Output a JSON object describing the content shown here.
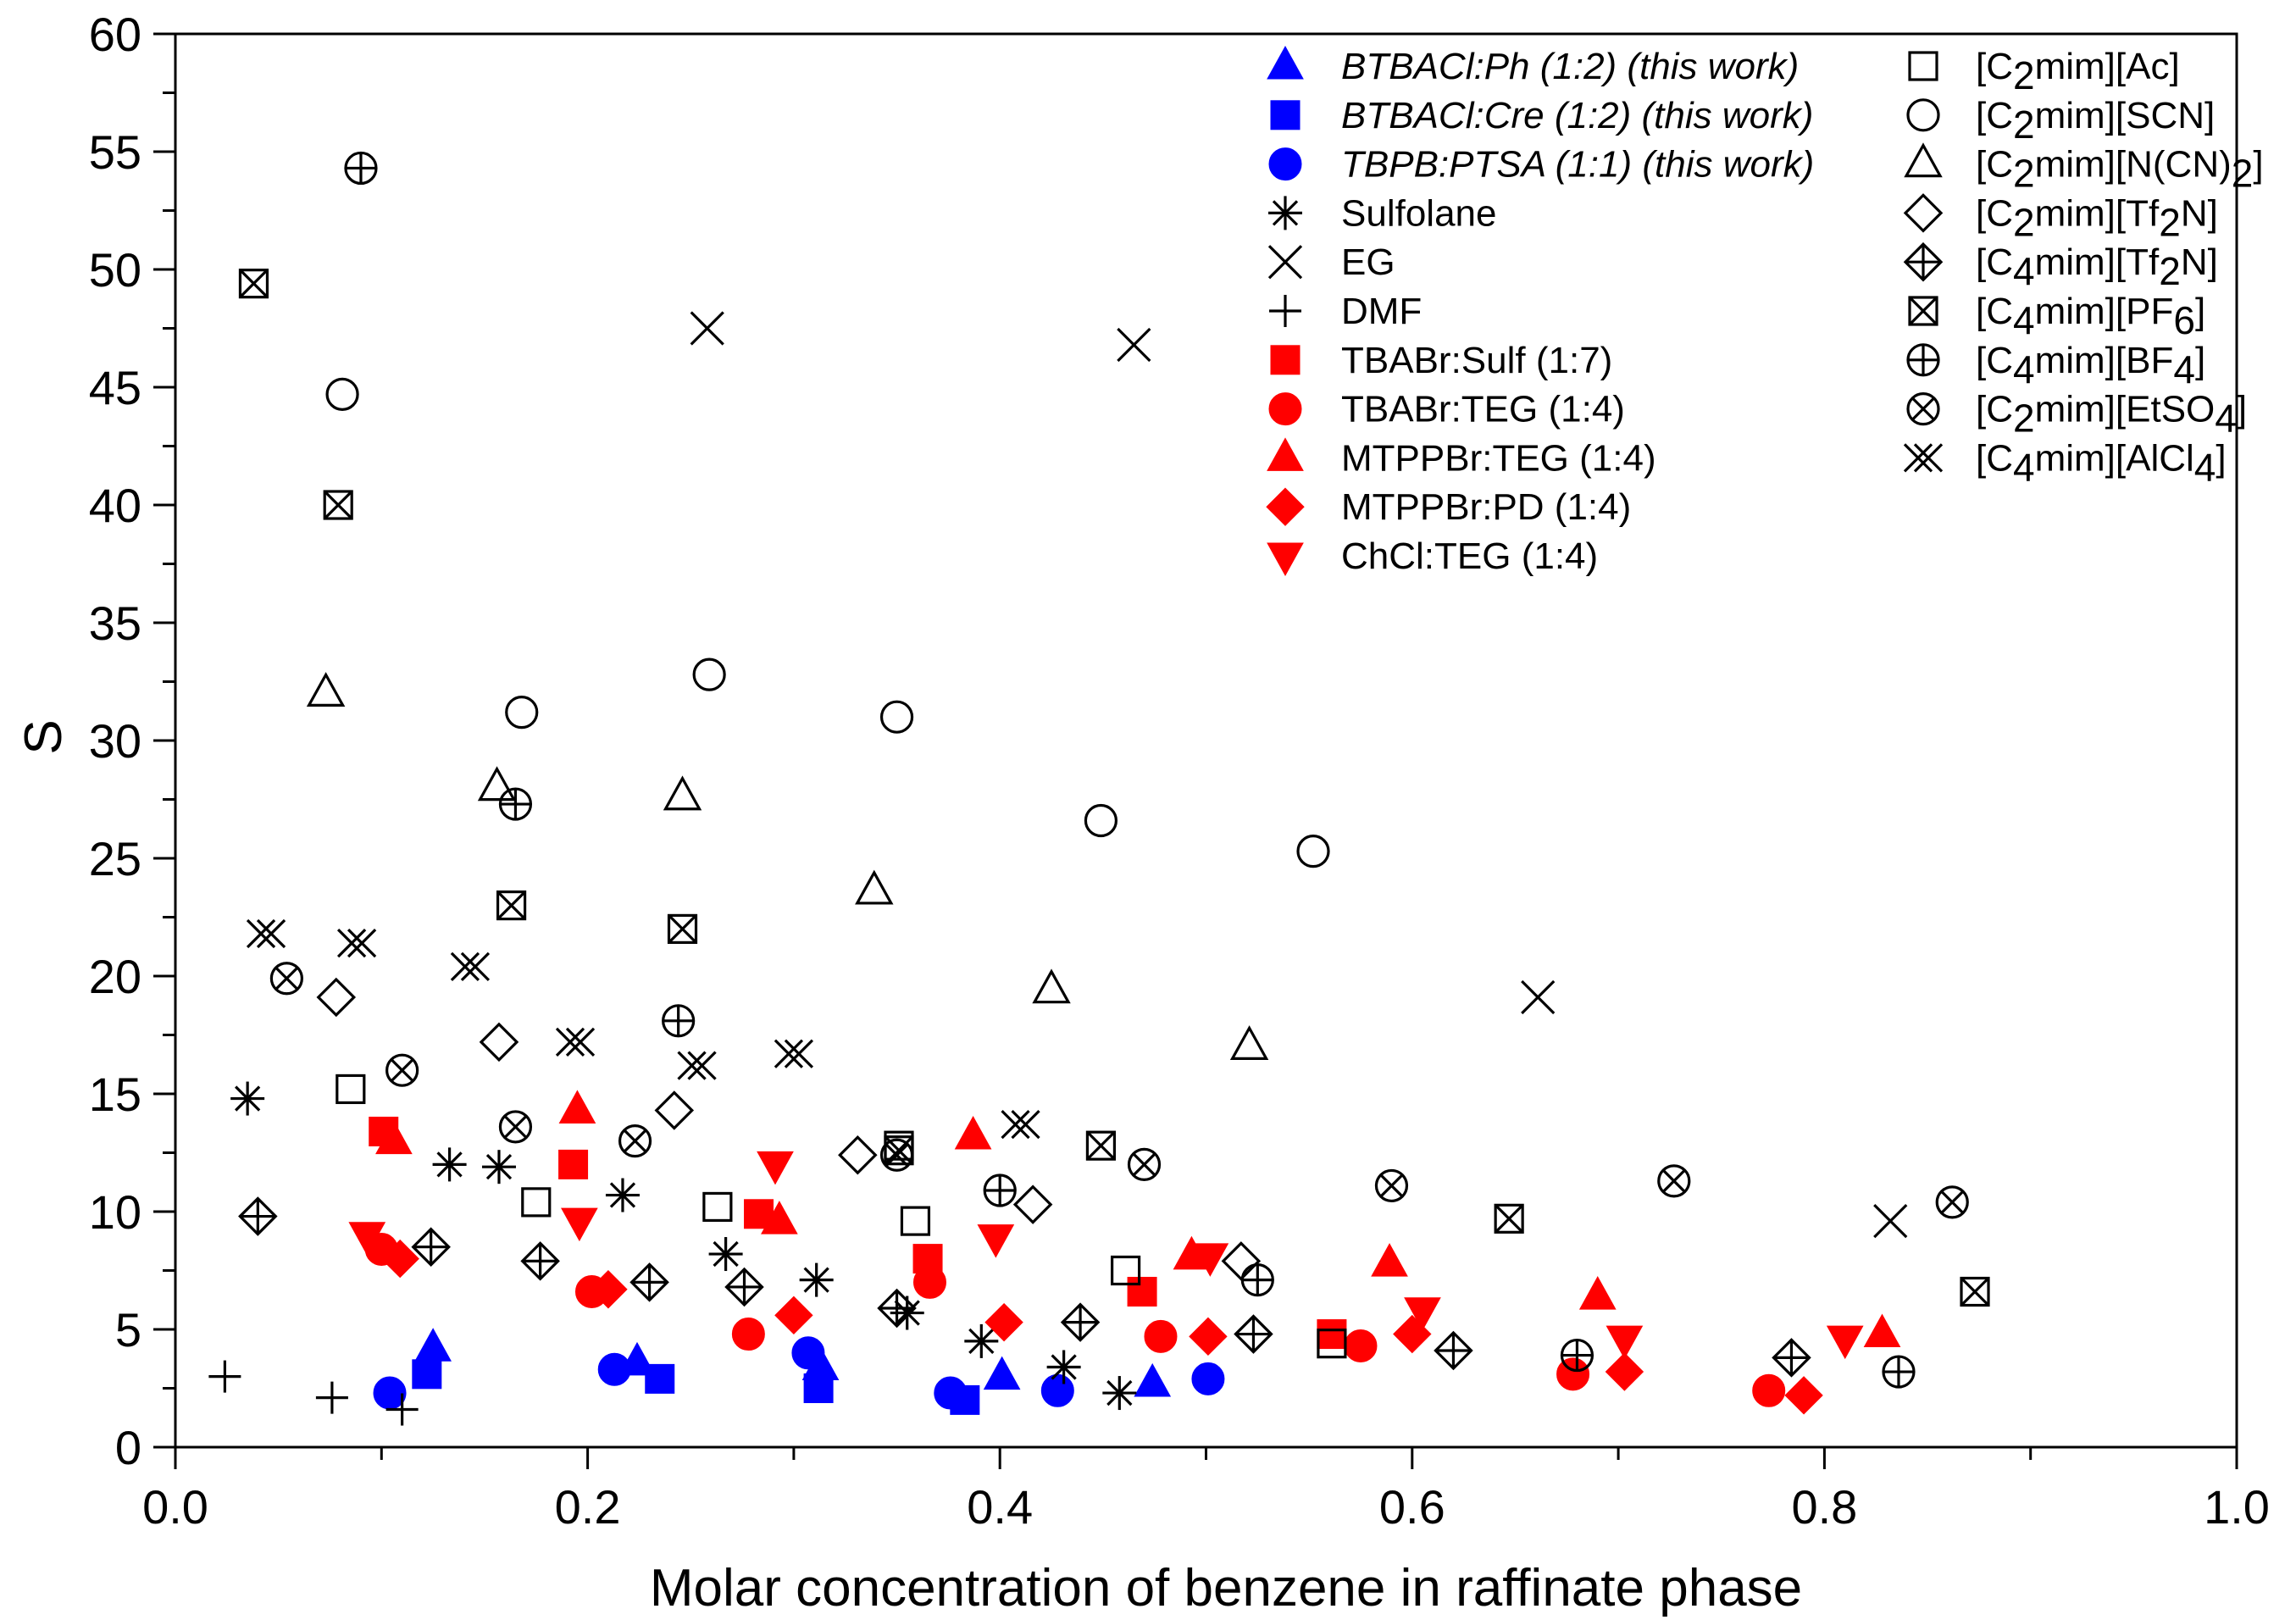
{
  "chart_data": {
    "type": "scatter",
    "title": "",
    "xlabel": "Molar concentration of benzene in raffinate phase",
    "ylabel": "S",
    "xlim": [
      0.0,
      1.0
    ],
    "ylim": [
      0,
      60
    ],
    "x_ticks": [
      "0.0",
      "0.2",
      "0.4",
      "0.6",
      "0.8",
      "1.0"
    ],
    "y_ticks": [
      "0",
      "5",
      "10",
      "15",
      "20",
      "25",
      "30",
      "35",
      "40",
      "45",
      "50",
      "55",
      "60"
    ],
    "grid": false,
    "legend_position": "top-right, two columns",
    "series": [
      {
        "name": "BTBACl:Ph (1:2) (this work)",
        "italic": true,
        "marker": "triangle-up",
        "color": "#0000ff",
        "fill": true,
        "points": [
          [
            0.125,
            4.2
          ],
          [
            0.224,
            3.6
          ],
          [
            0.313,
            3.4
          ],
          [
            0.401,
            3.0
          ],
          [
            0.474,
            2.7
          ]
        ]
      },
      {
        "name": "BTBACl:Cre (1:2) (this work)",
        "italic": true,
        "marker": "square",
        "color": "#0000ff",
        "fill": true,
        "points": [
          [
            0.122,
            3.1
          ],
          [
            0.235,
            2.9
          ],
          [
            0.312,
            2.5
          ],
          [
            0.383,
            2.0
          ]
        ]
      },
      {
        "name": "TBPB:PTSA (1:1) (this work)",
        "italic": true,
        "marker": "circle",
        "color": "#0000ff",
        "fill": true,
        "points": [
          [
            0.104,
            2.3
          ],
          [
            0.213,
            3.3
          ],
          [
            0.307,
            4.0
          ],
          [
            0.376,
            2.3
          ],
          [
            0.428,
            2.4
          ],
          [
            0.501,
            2.9
          ]
        ]
      },
      {
        "name": "Sulfolane",
        "marker": "asterisk",
        "color": "#000000",
        "fill": false,
        "points": [
          [
            0.035,
            14.8
          ],
          [
            0.133,
            12.0
          ],
          [
            0.157,
            11.9
          ],
          [
            0.217,
            10.7
          ],
          [
            0.267,
            8.2
          ],
          [
            0.311,
            7.1
          ],
          [
            0.355,
            5.7
          ],
          [
            0.391,
            4.5
          ],
          [
            0.431,
            3.4
          ],
          [
            0.458,
            2.3
          ]
        ]
      },
      {
        "name": "EG",
        "marker": "x",
        "color": "#000000",
        "fill": false,
        "points": [
          [
            0.258,
            47.5
          ],
          [
            0.465,
            46.8
          ],
          [
            0.661,
            19.1
          ],
          [
            0.832,
            9.6
          ]
        ]
      },
      {
        "name": "DMF",
        "marker": "plus",
        "color": "#000000",
        "fill": false,
        "points": [
          [
            0.024,
            3.0
          ],
          [
            0.076,
            2.1
          ],
          [
            0.11,
            1.6
          ]
        ]
      },
      {
        "name": "TBABr:Sulf (1:7)",
        "marker": "square",
        "color": "#ff0000",
        "fill": true,
        "points": [
          [
            0.101,
            13.4
          ],
          [
            0.193,
            12.0
          ],
          [
            0.283,
            9.9
          ],
          [
            0.365,
            8.0
          ],
          [
            0.469,
            6.6
          ],
          [
            0.561,
            4.8
          ]
        ]
      },
      {
        "name": "TBABr:TEG (1:4)",
        "marker": "circle",
        "color": "#ff0000",
        "fill": true,
        "points": [
          [
            0.1,
            8.4
          ],
          [
            0.202,
            6.6
          ],
          [
            0.278,
            4.8
          ],
          [
            0.366,
            7.0
          ],
          [
            0.478,
            4.7
          ],
          [
            0.575,
            4.3
          ],
          [
            0.678,
            3.1
          ],
          [
            0.773,
            2.4
          ]
        ]
      },
      {
        "name": "MTPPBr:TEG (1:4)",
        "marker": "triangle-up",
        "color": "#ff0000",
        "fill": true,
        "points": [
          [
            0.106,
            13.0
          ],
          [
            0.195,
            14.3
          ],
          [
            0.293,
            9.6
          ],
          [
            0.387,
            13.2
          ],
          [
            0.493,
            8.1
          ],
          [
            0.589,
            7.8
          ],
          [
            0.69,
            6.4
          ],
          [
            0.828,
            4.8
          ]
        ]
      },
      {
        "name": "MTPPBr:PD (1:4)",
        "marker": "diamond",
        "color": "#ff0000",
        "fill": true,
        "points": [
          [
            0.109,
            8.0
          ],
          [
            0.21,
            6.7
          ],
          [
            0.3,
            5.6
          ],
          [
            0.402,
            5.3
          ],
          [
            0.501,
            4.7
          ],
          [
            0.6,
            4.8
          ],
          [
            0.703,
            3.2
          ],
          [
            0.79,
            2.2
          ]
        ]
      },
      {
        "name": "ChCl:TEG (1:4)",
        "marker": "triangle-down",
        "color": "#ff0000",
        "fill": true,
        "points": [
          [
            0.093,
            9.0
          ],
          [
            0.196,
            9.6
          ],
          [
            0.291,
            12.0
          ],
          [
            0.398,
            8.9
          ],
          [
            0.502,
            8.1
          ],
          [
            0.605,
            5.8
          ],
          [
            0.703,
            4.6
          ],
          [
            0.81,
            4.6
          ]
        ]
      },
      {
        "name": "[C2mim][Ac]",
        "marker": "open-square",
        "color": "#000000",
        "fill": false,
        "points": [
          [
            0.085,
            15.2
          ],
          [
            0.175,
            10.4
          ],
          [
            0.263,
            10.2
          ],
          [
            0.359,
            9.6
          ],
          [
            0.351,
            12.8
          ],
          [
            0.461,
            7.5
          ],
          [
            0.561,
            4.4
          ]
        ]
      },
      {
        "name": "[C2mim][SCN]",
        "marker": "open-circle",
        "color": "#000000",
        "fill": false,
        "points": [
          [
            0.081,
            44.7
          ],
          [
            0.168,
            31.2
          ],
          [
            0.259,
            32.8
          ],
          [
            0.35,
            31.0
          ],
          [
            0.449,
            26.6
          ],
          [
            0.552,
            25.3
          ]
        ]
      },
      {
        "name": "[C2mim][N(CN)2]",
        "marker": "open-triangle",
        "color": "#000000",
        "fill": false,
        "points": [
          [
            0.073,
            32.0
          ],
          [
            0.156,
            28.0
          ],
          [
            0.246,
            27.6
          ],
          [
            0.339,
            23.6
          ],
          [
            0.425,
            19.4
          ],
          [
            0.521,
            17.0
          ]
        ]
      },
      {
        "name": "[C2mim][Tf2N]",
        "marker": "open-diamond",
        "color": "#000000",
        "fill": false,
        "points": [
          [
            0.078,
            19.1
          ],
          [
            0.157,
            17.2
          ],
          [
            0.242,
            14.3
          ],
          [
            0.331,
            12.4
          ],
          [
            0.416,
            10.3
          ],
          [
            0.517,
            7.9
          ]
        ]
      },
      {
        "name": "[C4mim][Tf2N]",
        "marker": "diamond-plus",
        "color": "#000000",
        "fill": false,
        "points": [
          [
            0.04,
            9.8
          ],
          [
            0.124,
            8.5
          ],
          [
            0.177,
            7.9
          ],
          [
            0.23,
            7.0
          ],
          [
            0.276,
            6.8
          ],
          [
            0.35,
            5.9
          ],
          [
            0.439,
            5.3
          ],
          [
            0.523,
            4.8
          ],
          [
            0.62,
            4.1
          ],
          [
            0.784,
            3.8
          ]
        ]
      },
      {
        "name": "[C4mim][PF6]",
        "marker": "square-x",
        "color": "#000000",
        "fill": false,
        "points": [
          [
            0.038,
            49.4
          ],
          [
            0.079,
            40.0
          ],
          [
            0.163,
            23.0
          ],
          [
            0.246,
            22.0
          ],
          [
            0.351,
            12.6
          ],
          [
            0.449,
            12.8
          ],
          [
            0.647,
            9.7
          ],
          [
            0.873,
            6.6
          ]
        ]
      },
      {
        "name": "[C4mim][BF4]",
        "marker": "circle-plus",
        "color": "#000000",
        "fill": false,
        "points": [
          [
            0.09,
            54.3
          ],
          [
            0.165,
            27.3
          ],
          [
            0.244,
            18.1
          ],
          [
            0.4,
            10.9
          ],
          [
            0.525,
            7.1
          ],
          [
            0.68,
            3.9
          ],
          [
            0.836,
            3.2
          ]
        ]
      },
      {
        "name": "[C2mim][EtSO4]",
        "marker": "circle-x",
        "color": "#000000",
        "fill": false,
        "points": [
          [
            0.054,
            19.9
          ],
          [
            0.11,
            16.0
          ],
          [
            0.165,
            13.6
          ],
          [
            0.223,
            13.0
          ],
          [
            0.35,
            12.4
          ],
          [
            0.47,
            12.0
          ],
          [
            0.59,
            11.1
          ],
          [
            0.727,
            11.3
          ],
          [
            0.862,
            10.4
          ]
        ]
      },
      {
        "name": "[C4mim][AlCl4]",
        "marker": "double-x",
        "color": "#000000",
        "fill": false,
        "points": [
          [
            0.044,
            21.8
          ],
          [
            0.088,
            21.4
          ],
          [
            0.143,
            20.4
          ],
          [
            0.194,
            17.2
          ],
          [
            0.253,
            16.2
          ],
          [
            0.3,
            16.7
          ],
          [
            0.41,
            13.7
          ]
        ]
      }
    ]
  }
}
